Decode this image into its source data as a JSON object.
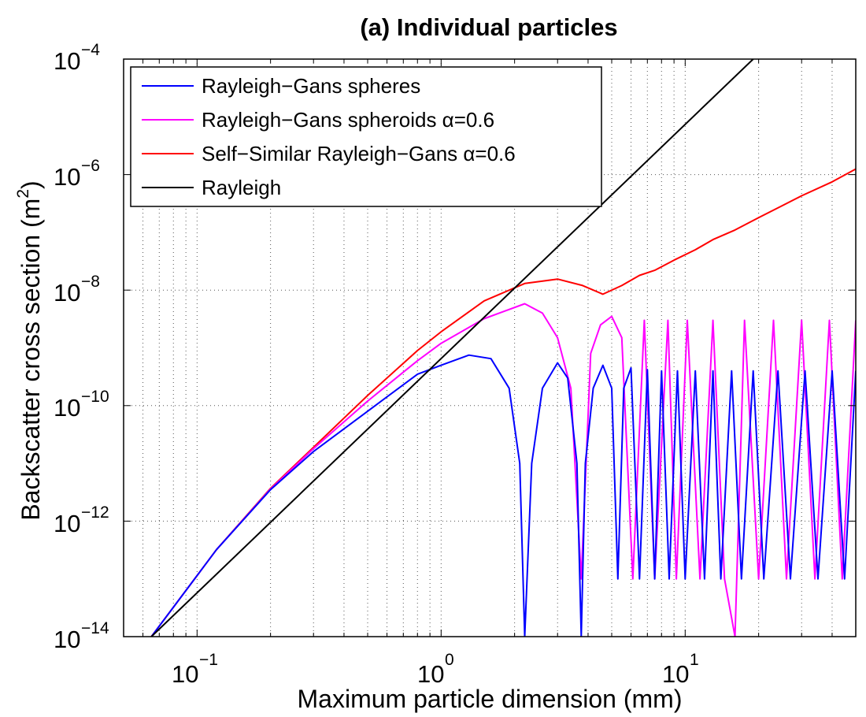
{
  "chart_data": {
    "type": "line",
    "title": "(a) Individual particles",
    "xlabel": "Maximum particle dimension (mm)",
    "ylabel_main": "Backscatter cross section (m",
    "ylabel_sup": "2",
    "ylabel_close": ")",
    "xscale": "log",
    "yscale": "log",
    "xlim": [
      0.05,
      50
    ],
    "ylim": [
      1e-14,
      0.0001
    ],
    "grid": "dotted",
    "legend_position": "top-left",
    "x_ticks": [
      {
        "base": "10",
        "exp": "−1",
        "value": 0.1
      },
      {
        "base": "10",
        "exp": "0",
        "value": 1
      },
      {
        "base": "10",
        "exp": "1",
        "value": 10
      }
    ],
    "y_ticks": [
      {
        "base": "10",
        "exp": "−4",
        "value": 0.0001
      },
      {
        "base": "10",
        "exp": "−6",
        "value": 1e-06
      },
      {
        "base": "10",
        "exp": "−8",
        "value": 1e-08
      },
      {
        "base": "10",
        "exp": "−10",
        "value": 1e-10
      },
      {
        "base": "10",
        "exp": "−12",
        "value": 1e-12
      },
      {
        "base": "10",
        "exp": "−14",
        "value": 1e-14
      }
    ],
    "series": [
      {
        "name": "Rayleigh−Gans spheres",
        "color": "#0000ff",
        "points": [
          [
            0.065,
            1e-14
          ],
          [
            0.12,
            3.2e-13
          ],
          [
            0.2,
            3.5e-12
          ],
          [
            0.3,
            1.6e-11
          ],
          [
            0.5,
            8e-11
          ],
          [
            0.8,
            3.5e-10
          ],
          [
            1.0,
            5e-10
          ],
          [
            1.3,
            7.5e-10
          ],
          [
            1.6,
            6.5e-10
          ],
          [
            1.9,
            2e-10
          ],
          [
            2.1,
            1e-11
          ],
          [
            2.2,
            1e-14
          ],
          [
            2.35,
            1e-11
          ],
          [
            2.6,
            2e-10
          ],
          [
            3.0,
            5.5e-10
          ],
          [
            3.3,
            3e-10
          ],
          [
            3.6,
            1e-11
          ],
          [
            3.75,
            1e-14
          ],
          [
            3.9,
            1e-11
          ],
          [
            4.2,
            2e-10
          ],
          [
            4.6,
            5e-10
          ],
          [
            5.0,
            2e-10
          ],
          [
            5.3,
            1e-13
          ],
          [
            5.6,
            2e-10
          ],
          [
            6.0,
            4.5e-10
          ],
          [
            6.5,
            1e-13
          ],
          [
            7.0,
            4.2e-10
          ],
          [
            7.5,
            1e-13
          ],
          [
            8.0,
            4e-10
          ],
          [
            8.6,
            1e-13
          ],
          [
            9.3,
            4e-10
          ],
          [
            10.0,
            1e-13
          ],
          [
            11,
            4e-10
          ],
          [
            12,
            1e-13
          ],
          [
            13,
            4e-10
          ],
          [
            14,
            1e-13
          ],
          [
            15.5,
            4e-10
          ],
          [
            17,
            1e-13
          ],
          [
            19,
            4e-10
          ],
          [
            21,
            1e-13
          ],
          [
            24,
            4e-10
          ],
          [
            27,
            1e-13
          ],
          [
            31,
            4e-10
          ],
          [
            35,
            1e-13
          ],
          [
            40,
            4e-10
          ],
          [
            45,
            1e-13
          ],
          [
            50,
            4e-10
          ]
        ]
      },
      {
        "name": "Rayleigh−Gans spheroids α=0.6",
        "color": "#ff00ff",
        "points": [
          [
            0.065,
            1e-14
          ],
          [
            0.12,
            3.2e-13
          ],
          [
            0.2,
            3.6e-12
          ],
          [
            0.3,
            1.8e-11
          ],
          [
            0.5,
            1.2e-10
          ],
          [
            0.8,
            6e-10
          ],
          [
            1.0,
            1.2e-09
          ],
          [
            1.5,
            3.2e-09
          ],
          [
            2.2,
            5.8e-09
          ],
          [
            2.6,
            4e-09
          ],
          [
            3.0,
            1.5e-09
          ],
          [
            3.4,
            2e-10
          ],
          [
            3.75,
            1e-13
          ],
          [
            4.1,
            8e-10
          ],
          [
            4.5,
            2.5e-09
          ],
          [
            5.0,
            3.5e-09
          ],
          [
            5.5,
            1.5e-09
          ],
          [
            6.1,
            1e-13
          ],
          [
            6.8,
            3e-09
          ],
          [
            7.5,
            1e-13
          ],
          [
            8.5,
            3e-09
          ],
          [
            9.2,
            1e-13
          ],
          [
            10.2,
            3e-09
          ],
          [
            11.5,
            1e-13
          ],
          [
            13,
            3e-09
          ],
          [
            14.5,
            1e-13
          ],
          [
            16,
            1e-14
          ],
          [
            17.5,
            3e-09
          ],
          [
            20,
            1e-13
          ],
          [
            23,
            3e-09
          ],
          [
            26,
            1e-13
          ],
          [
            30,
            3e-09
          ],
          [
            34,
            1e-13
          ],
          [
            39,
            3e-09
          ],
          [
            44,
            1e-13
          ],
          [
            50,
            3e-09
          ]
        ]
      },
      {
        "name": "Self−Similar Rayleigh−Gans α=0.6",
        "color": "#ff0000",
        "points": [
          [
            0.065,
            1e-14
          ],
          [
            0.12,
            3.2e-13
          ],
          [
            0.2,
            3.7e-12
          ],
          [
            0.3,
            1.9e-11
          ],
          [
            0.5,
            1.5e-10
          ],
          [
            0.8,
            9e-10
          ],
          [
            1.0,
            1.9e-09
          ],
          [
            1.5,
            6.5e-09
          ],
          [
            2.2,
            1.3e-08
          ],
          [
            3.0,
            1.55e-08
          ],
          [
            3.8,
            1.2e-08
          ],
          [
            4.6,
            8.5e-09
          ],
          [
            5.5,
            1.2e-08
          ],
          [
            6.5,
            1.8e-08
          ],
          [
            7.5,
            2.2e-08
          ],
          [
            9,
            3.3e-08
          ],
          [
            11,
            5e-08
          ],
          [
            13,
            7.5e-08
          ],
          [
            16,
            1.1e-07
          ],
          [
            20,
            1.8e-07
          ],
          [
            25,
            2.9e-07
          ],
          [
            30,
            4.3e-07
          ],
          [
            40,
            7.5e-07
          ],
          [
            50,
            1.25e-06
          ]
        ]
      },
      {
        "name": "Rayleigh",
        "color": "#000000",
        "points": [
          [
            0.065,
            1e-14
          ],
          [
            19,
            0.0001
          ]
        ]
      }
    ]
  }
}
